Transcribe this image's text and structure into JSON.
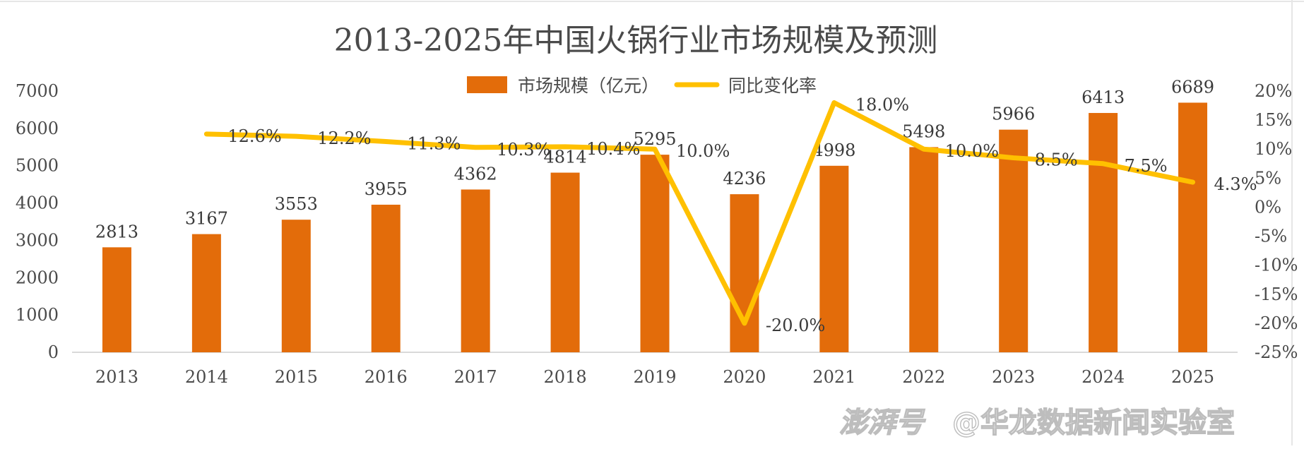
{
  "chart_data": {
    "type": "bar",
    "title": "2013-2025年中国火锅行业市场规模及预测",
    "categories": [
      "2013",
      "2014",
      "2015",
      "2016",
      "2017",
      "2018",
      "2019",
      "2020",
      "2021",
      "2022",
      "2023",
      "2024",
      "2025"
    ],
    "series": [
      {
        "name": "市场规模（亿元）",
        "type": "bar",
        "axis": "left",
        "color": "#E36C0A",
        "values": [
          2813,
          3167,
          3553,
          3955,
          4362,
          4814,
          5295,
          4236,
          4998,
          5498,
          5966,
          6413,
          6689
        ],
        "labels": [
          "2813",
          "3167",
          "3553",
          "3955",
          "4362",
          "4814",
          "5295",
          "4236",
          "4998",
          "5498",
          "5966",
          "6413",
          "6689"
        ]
      },
      {
        "name": "同比变化率",
        "type": "line",
        "axis": "right",
        "color": "#FFC000",
        "values": [
          null,
          12.6,
          12.2,
          11.3,
          10.3,
          10.4,
          10.0,
          -20.0,
          18.0,
          10.0,
          8.5,
          7.5,
          4.3
        ],
        "labels": [
          "",
          "12.6%",
          "12.2%",
          "11.3%",
          "10.3%",
          "10.4%",
          "10.0%",
          "-20.0%",
          "18.0%",
          "10.0%",
          "8.5%",
          "7.5%",
          "4.3%"
        ]
      }
    ],
    "y_left": {
      "min": 0,
      "max": 7000,
      "ticks": [
        "0",
        "1000",
        "2000",
        "3000",
        "4000",
        "5000",
        "6000",
        "7000"
      ]
    },
    "y_right": {
      "min": -25,
      "max": 20,
      "ticks": [
        "-25%",
        "-20%",
        "-15%",
        "-10%",
        "-5%",
        "0%",
        "5%",
        "10%",
        "15%",
        "20%"
      ]
    },
    "legend": {
      "position": "top"
    },
    "grid": false
  },
  "watermark": {
    "logo_text": "澎湃号",
    "account_text": "@华龙数据新闻实验室"
  },
  "colors": {
    "bar": "#E36C0A",
    "line": "#FFC000",
    "axis": "#d9d9d9",
    "text": "#4a4a4a"
  }
}
